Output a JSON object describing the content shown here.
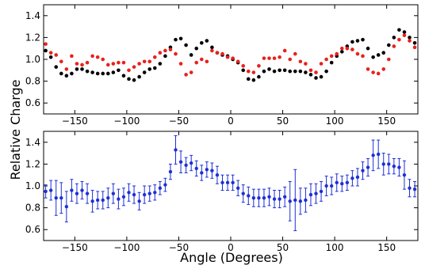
{
  "figure": {
    "ylabel": "Relative Charge",
    "xlabel": "Angle (Degrees)"
  },
  "chart_data": [
    {
      "type": "scatter",
      "panel": "top",
      "xlim": [
        -180,
        180
      ],
      "ylim": [
        0.5,
        1.5
      ],
      "xticks": [
        -150,
        -100,
        -50,
        0,
        50,
        100,
        150
      ],
      "yticks": [
        0.6,
        0.8,
        1.0,
        1.2,
        1.4
      ],
      "xtick_labels": [
        "−150",
        "−100",
        "−50",
        "0",
        "50",
        "100",
        "150"
      ],
      "ytick_labels": [
        "0.6",
        "0.8",
        "1.0",
        "1.2",
        "1.4"
      ],
      "series": [
        {
          "color": "#000000",
          "x": [
            -178,
            -173,
            -168,
            -163,
            -158,
            -153,
            -148,
            -143,
            -138,
            -133,
            -128,
            -123,
            -118,
            -113,
            -108,
            -103,
            -98,
            -93,
            -88,
            -83,
            -78,
            -73,
            -68,
            -63,
            -58,
            -53,
            -48,
            -43,
            -38,
            -33,
            -28,
            -23,
            -18,
            -13,
            -8,
            -3,
            2,
            7,
            12,
            17,
            22,
            27,
            32,
            37,
            42,
            47,
            52,
            57,
            62,
            67,
            72,
            77,
            82,
            87,
            92,
            97,
            102,
            107,
            112,
            117,
            122,
            127,
            132,
            137,
            142,
            147,
            152,
            157,
            162,
            167,
            172,
            177
          ],
          "y": [
            1.08,
            1.02,
            0.93,
            0.87,
            0.85,
            0.87,
            0.91,
            0.91,
            0.89,
            0.88,
            0.87,
            0.87,
            0.87,
            0.88,
            0.9,
            0.85,
            0.82,
            0.81,
            0.84,
            0.88,
            0.91,
            0.92,
            0.96,
            1.03,
            1.11,
            1.18,
            1.19,
            1.13,
            1.04,
            1.1,
            1.15,
            1.17,
            1.11,
            1.06,
            1.04,
            1.03,
            1.0,
            0.97,
            0.9,
            0.82,
            0.81,
            0.84,
            0.89,
            0.91,
            0.89,
            0.9,
            0.9,
            0.89,
            0.89,
            0.89,
            0.88,
            0.86,
            0.83,
            0.84,
            0.89,
            0.97,
            1.03,
            1.07,
            1.12,
            1.16,
            1.17,
            1.18,
            1.1,
            1.02,
            1.04,
            1.06,
            1.13,
            1.2,
            1.27,
            1.25,
            1.2,
            1.15
          ]
        },
        {
          "color": "#e8211c",
          "x": [
            -178,
            -173,
            -168,
            -163,
            -158,
            -153,
            -148,
            -143,
            -138,
            -133,
            -128,
            -123,
            -118,
            -113,
            -108,
            -103,
            -98,
            -93,
            -88,
            -83,
            -78,
            -73,
            -68,
            -63,
            -58,
            -53,
            -48,
            -43,
            -38,
            -33,
            -28,
            -23,
            -18,
            -13,
            -8,
            -3,
            2,
            7,
            12,
            17,
            22,
            27,
            32,
            37,
            42,
            47,
            52,
            57,
            62,
            67,
            72,
            77,
            82,
            87,
            92,
            97,
            102,
            107,
            112,
            117,
            122,
            127,
            132,
            137,
            142,
            147,
            152,
            157,
            162,
            167,
            172,
            177
          ],
          "y": [
            1.14,
            1.06,
            1.04,
            0.98,
            0.91,
            1.03,
            0.96,
            0.95,
            0.97,
            1.03,
            1.02,
            1.0,
            0.95,
            0.96,
            0.97,
            0.97,
            0.9,
            0.93,
            0.96,
            0.98,
            0.98,
            1.02,
            1.06,
            1.08,
            1.09,
            1.05,
            0.96,
            0.86,
            0.88,
            0.97,
            1.0,
            0.98,
            1.08,
            1.06,
            1.05,
            1.02,
            1.01,
            0.98,
            0.94,
            0.89,
            0.88,
            0.94,
            1.01,
            1.01,
            1.01,
            1.02,
            1.08,
            1.0,
            1.05,
            0.98,
            0.96,
            0.9,
            0.88,
            0.96,
            1.0,
            1.03,
            1.05,
            1.1,
            1.1,
            1.09,
            1.05,
            1.03,
            0.91,
            0.88,
            0.87,
            0.91,
            1.0,
            1.12,
            1.18,
            1.22,
            1.17,
            1.11
          ]
        }
      ]
    },
    {
      "type": "scatter",
      "panel": "bottom",
      "xlim": [
        -180,
        180
      ],
      "ylim": [
        0.5,
        1.5
      ],
      "xticks": [
        -150,
        -100,
        -50,
        0,
        50,
        100,
        150
      ],
      "yticks": [
        0.6,
        0.8,
        1.0,
        1.2,
        1.4
      ],
      "xtick_labels": [
        "−150",
        "−100",
        "−50",
        "0",
        "50",
        "100",
        "150"
      ],
      "ytick_labels": [
        "0.6",
        "0.8",
        "1.0",
        "1.2",
        "1.4"
      ],
      "series": [
        {
          "color": "#1e2fd6",
          "x": [
            -178,
            -173,
            -168,
            -163,
            -158,
            -153,
            -148,
            -143,
            -138,
            -133,
            -128,
            -123,
            -118,
            -113,
            -108,
            -103,
            -98,
            -93,
            -88,
            -83,
            -78,
            -73,
            -68,
            -63,
            -58,
            -53,
            -48,
            -43,
            -38,
            -33,
            -28,
            -23,
            -18,
            -13,
            -8,
            -3,
            2,
            7,
            12,
            17,
            22,
            27,
            32,
            37,
            42,
            47,
            52,
            57,
            62,
            67,
            72,
            77,
            82,
            87,
            92,
            97,
            102,
            107,
            112,
            117,
            122,
            127,
            132,
            137,
            142,
            147,
            152,
            157,
            162,
            167,
            172,
            177
          ],
          "y": [
            0.95,
            0.96,
            0.89,
            0.89,
            0.81,
            0.96,
            0.93,
            0.96,
            0.93,
            0.86,
            0.87,
            0.87,
            0.89,
            0.93,
            0.88,
            0.9,
            0.94,
            0.92,
            0.86,
            0.92,
            0.93,
            0.94,
            0.98,
            1.01,
            1.13,
            1.33,
            1.22,
            1.19,
            1.21,
            1.16,
            1.12,
            1.15,
            1.14,
            1.1,
            1.03,
            1.03,
            1.03,
            0.98,
            0.93,
            0.91,
            0.89,
            0.89,
            0.89,
            0.9,
            0.88,
            0.88,
            0.9,
            0.86,
            0.87,
            0.86,
            0.87,
            0.92,
            0.93,
            0.95,
            1.0,
            1.0,
            1.03,
            1.02,
            1.03,
            1.07,
            1.08,
            1.14,
            1.17,
            1.28,
            1.29,
            1.2,
            1.2,
            1.18,
            1.17,
            1.1,
            0.98,
            0.97
          ],
          "yerr": [
            0.06,
            0.09,
            0.16,
            0.14,
            0.14,
            0.1,
            0.09,
            0.08,
            0.09,
            0.1,
            0.08,
            0.08,
            0.09,
            0.09,
            0.09,
            0.08,
            0.08,
            0.08,
            0.08,
            0.08,
            0.07,
            0.07,
            0.06,
            0.06,
            0.07,
            0.13,
            0.1,
            0.07,
            0.07,
            0.07,
            0.07,
            0.07,
            0.07,
            0.08,
            0.07,
            0.07,
            0.07,
            0.07,
            0.08,
            0.08,
            0.08,
            0.08,
            0.08,
            0.08,
            0.08,
            0.08,
            0.09,
            0.18,
            0.28,
            0.12,
            0.11,
            0.1,
            0.09,
            0.09,
            0.09,
            0.08,
            0.08,
            0.07,
            0.07,
            0.07,
            0.08,
            0.08,
            0.08,
            0.14,
            0.13,
            0.1,
            0.09,
            0.07,
            0.08,
            0.13,
            0.08,
            0.07
          ]
        }
      ]
    }
  ]
}
